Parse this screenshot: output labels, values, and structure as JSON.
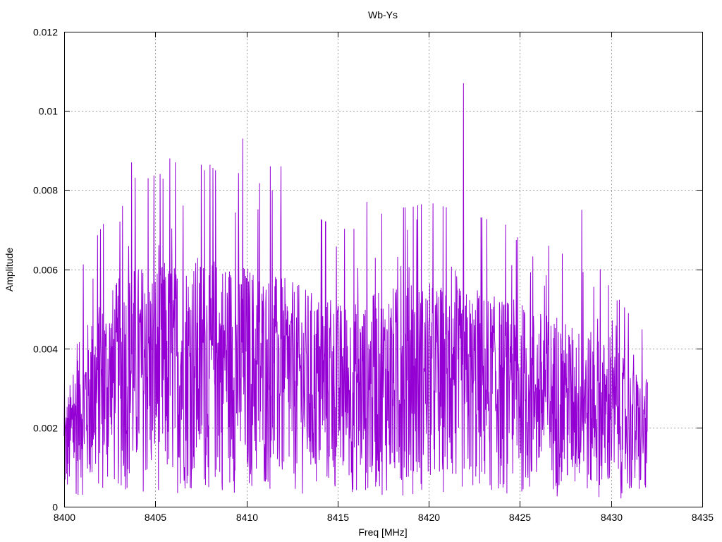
{
  "chart_data": {
    "type": "line",
    "title": "Wb-Ys",
    "xlabel": "Freq [MHz]",
    "ylabel": "Amplitude",
    "xlim": [
      8400,
      8435
    ],
    "ylim": [
      0,
      0.012
    ],
    "x_ticks": [
      8400,
      8405,
      8410,
      8415,
      8420,
      8425,
      8430,
      8435
    ],
    "x_tick_labels": [
      "8400",
      "8405",
      "8410",
      "8415",
      "8420",
      "8425",
      "8430",
      "8435"
    ],
    "y_ticks": [
      0,
      0.002,
      0.004,
      0.006,
      0.008,
      0.01,
      0.012
    ],
    "y_tick_labels": [
      "0",
      "0.002",
      "0.004",
      "0.006",
      "0.008",
      "0.01",
      "0.012"
    ],
    "grid": true,
    "series": [
      {
        "color": "#9400d3",
        "x_start": 8400,
        "x_end": 8432,
        "envelope": [
          0.0025,
          0.0045,
          0.0052,
          0.0058,
          0.0062,
          0.0062,
          0.0063,
          0.0064,
          0.0064,
          0.0063,
          0.0062,
          0.006,
          0.0058,
          0.0056,
          0.0054,
          0.0052,
          0.0052,
          0.0054,
          0.0056,
          0.0056,
          0.0057,
          0.0056,
          0.0055,
          0.0054,
          0.0053,
          0.0052,
          0.005,
          0.0048,
          0.0046,
          0.0044,
          0.0041,
          0.0036,
          0.0032
        ],
        "peaks": [
          {
            "x": 8403.2,
            "y": 0.0076
          },
          {
            "x": 8403.7,
            "y": 0.0087
          },
          {
            "x": 8404.6,
            "y": 0.0083
          },
          {
            "x": 8405.8,
            "y": 0.0088
          },
          {
            "x": 8406.1,
            "y": 0.0087
          },
          {
            "x": 8407.7,
            "y": 0.0085
          },
          {
            "x": 8408.3,
            "y": 0.0085
          },
          {
            "x": 8409.8,
            "y": 0.0093
          },
          {
            "x": 8411.3,
            "y": 0.0086
          },
          {
            "x": 8411.9,
            "y": 0.0086
          },
          {
            "x": 8416.6,
            "y": 0.0077
          },
          {
            "x": 8421.9,
            "y": 0.0107
          },
          {
            "x": 8428.4,
            "y": 0.0075
          },
          {
            "x": 8429.4,
            "y": 0.006
          }
        ]
      }
    ]
  }
}
